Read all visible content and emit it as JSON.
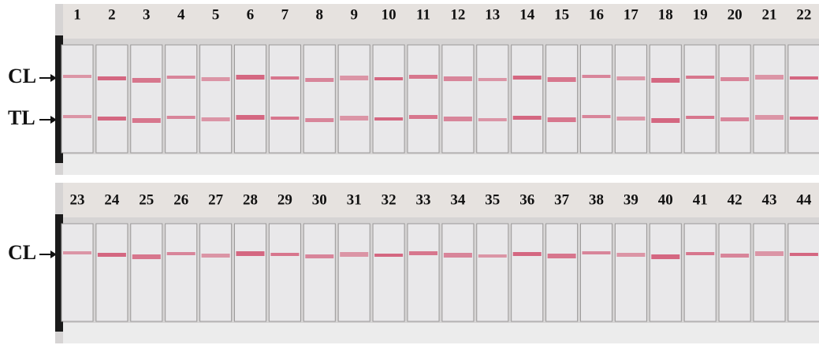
{
  "top_panel": {
    "strip_numbers": [
      1,
      2,
      3,
      4,
      5,
      6,
      7,
      8,
      9,
      10,
      11,
      12,
      13,
      14,
      15,
      16,
      17,
      18,
      19,
      20,
      21,
      22
    ],
    "line_labels": [
      "CL",
      "TL"
    ]
  },
  "bottom_panel": {
    "strip_numbers": [
      23,
      24,
      25,
      26,
      27,
      28,
      29,
      30,
      31,
      32,
      33,
      34,
      35,
      36,
      37,
      38,
      39,
      40,
      41,
      42,
      43,
      44
    ],
    "line_labels": [
      "CL"
    ]
  }
}
